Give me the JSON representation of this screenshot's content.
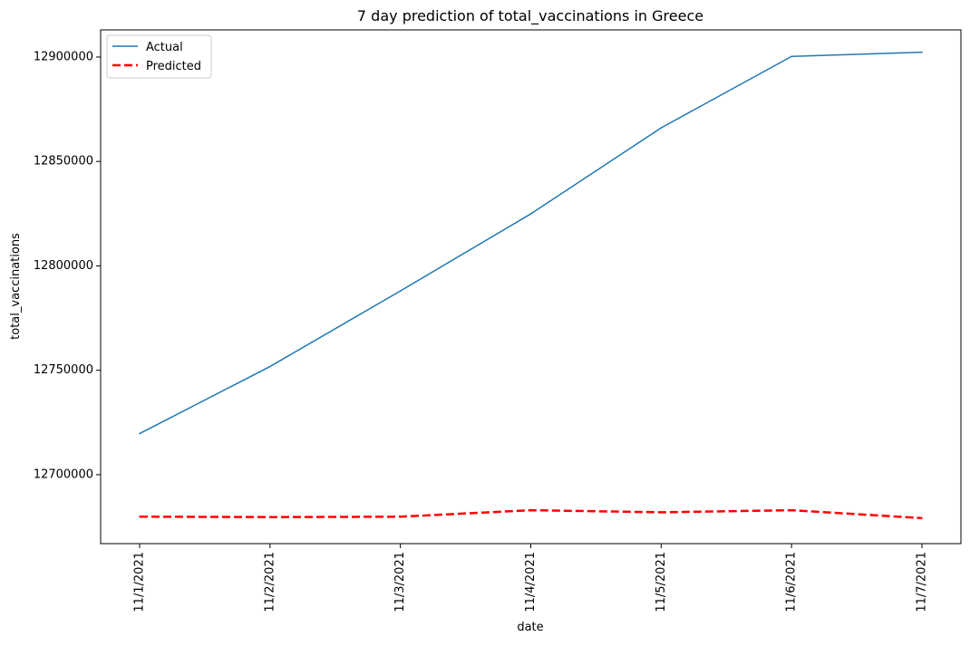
{
  "chart_data": {
    "type": "line",
    "title": "7 day prediction of total_vaccinations in Greece",
    "xlabel": "date",
    "ylabel": "total_vaccinations",
    "categories": [
      "11/1/2021",
      "11/2/2021",
      "11/3/2021",
      "11/4/2021",
      "11/5/2021",
      "11/6/2021",
      "11/7/2021"
    ],
    "ylim": [
      12667000,
      12913000
    ],
    "yticks": [
      12700000,
      12750000,
      12800000,
      12850000,
      12900000
    ],
    "ytick_labels": [
      "12700000",
      "12750000",
      "12800000",
      "12850000",
      "12900000"
    ],
    "grid": false,
    "legend": {
      "placement": "top-left"
    },
    "series": [
      {
        "name": "Actual",
        "color": "#1f77b4",
        "style": "solid",
        "values": [
          12719700,
          12751800,
          12788000,
          12824900,
          12866100,
          12900300,
          12902300
        ]
      },
      {
        "name": "Predicted",
        "color": "#ff0000",
        "style": "dashed",
        "values": [
          12679900,
          12679700,
          12679900,
          12683000,
          12682000,
          12683000,
          12679200
        ]
      }
    ]
  }
}
